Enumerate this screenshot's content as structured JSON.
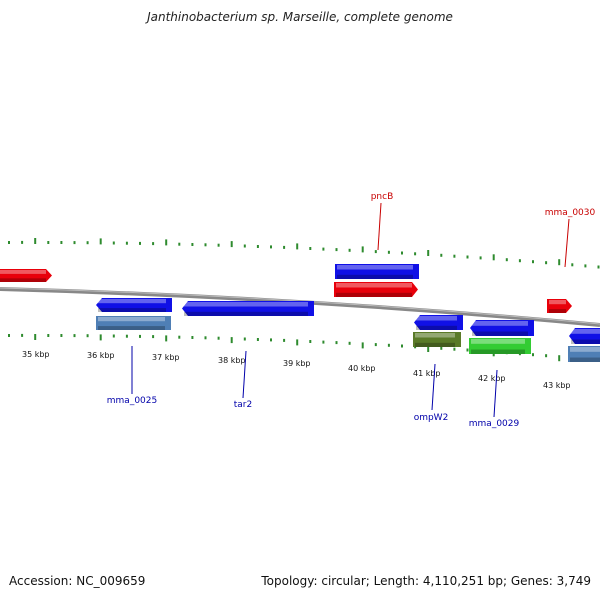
{
  "title": "Janthinobacterium sp. Marseille, complete genome",
  "footer": {
    "accession": "Accession: NC_009659",
    "summary": "Topology: circular; Length: 4,110,251 bp; Genes: 3,749"
  },
  "colors": {
    "forward_gene": "#e8000a",
    "reverse_gene": "#1010e6",
    "steelblue_feature": "#4f7fb5",
    "olive_feature": "#5a7a28",
    "green_feature": "#33cc33",
    "backbone": "#888888",
    "tick": "#2e8b2e",
    "forward_label": "#c80000",
    "reverse_label": "#0000aa"
  },
  "scale_labels": [
    "35 kbp",
    "36 kbp",
    "37 kbp",
    "38 kbp",
    "39 kbp",
    "40 kbp",
    "41 kbp",
    "42 kbp",
    "43 kbp"
  ],
  "gene_labels": [
    {
      "name": "pncB",
      "strand": "forward"
    },
    {
      "name": "mma_0030",
      "strand": "forward"
    },
    {
      "name": "mma_0025",
      "strand": "reverse"
    },
    {
      "name": "tar2",
      "strand": "reverse"
    },
    {
      "name": "ompW2",
      "strand": "reverse"
    },
    {
      "name": "mma_0029",
      "strand": "reverse"
    }
  ]
}
